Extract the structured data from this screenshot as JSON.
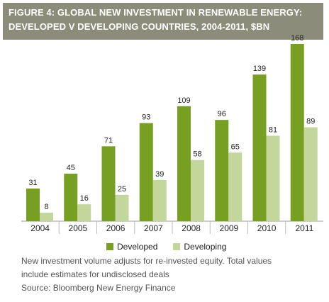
{
  "header": {
    "line1": "FIGURE 4: GLOBAL NEW INVESTMENT IN RENEWABLE ENERGY:",
    "line2": "DEVELOPED V DEVELOPING COUNTRIES, 2004-2011, $BN"
  },
  "chart_data": {
    "type": "bar",
    "title": "FIGURE 4: GLOBAL NEW INVESTMENT IN RENEWABLE ENERGY: DEVELOPED V DEVELOPING COUNTRIES, 2004-2011, $BN",
    "categories": [
      "2004",
      "2005",
      "2006",
      "2007",
      "2008",
      "2009",
      "2010",
      "2011"
    ],
    "series": [
      {
        "name": "Developed",
        "color": "#77a022",
        "values": [
          31,
          45,
          71,
          93,
          109,
          96,
          139,
          168
        ]
      },
      {
        "name": "Developing",
        "color": "#c3d69b",
        "values": [
          8,
          16,
          25,
          39,
          58,
          65,
          81,
          89
        ]
      }
    ],
    "ylim": [
      0,
      180
    ],
    "grid": false,
    "legend": "bottom",
    "xlabel": "",
    "ylabel": ""
  },
  "legend": {
    "developed": "Developed",
    "developing": "Developing"
  },
  "notes": {
    "line1": "New investment volume adjusts for re-invested equity. Total values",
    "line2": "include estimates for undisclosed deals",
    "source": "Source: Bloomberg New Energy Finance"
  },
  "colors": {
    "header_bg": "#8b8d7a",
    "developed": "#77a022",
    "developing": "#c3d69b"
  }
}
